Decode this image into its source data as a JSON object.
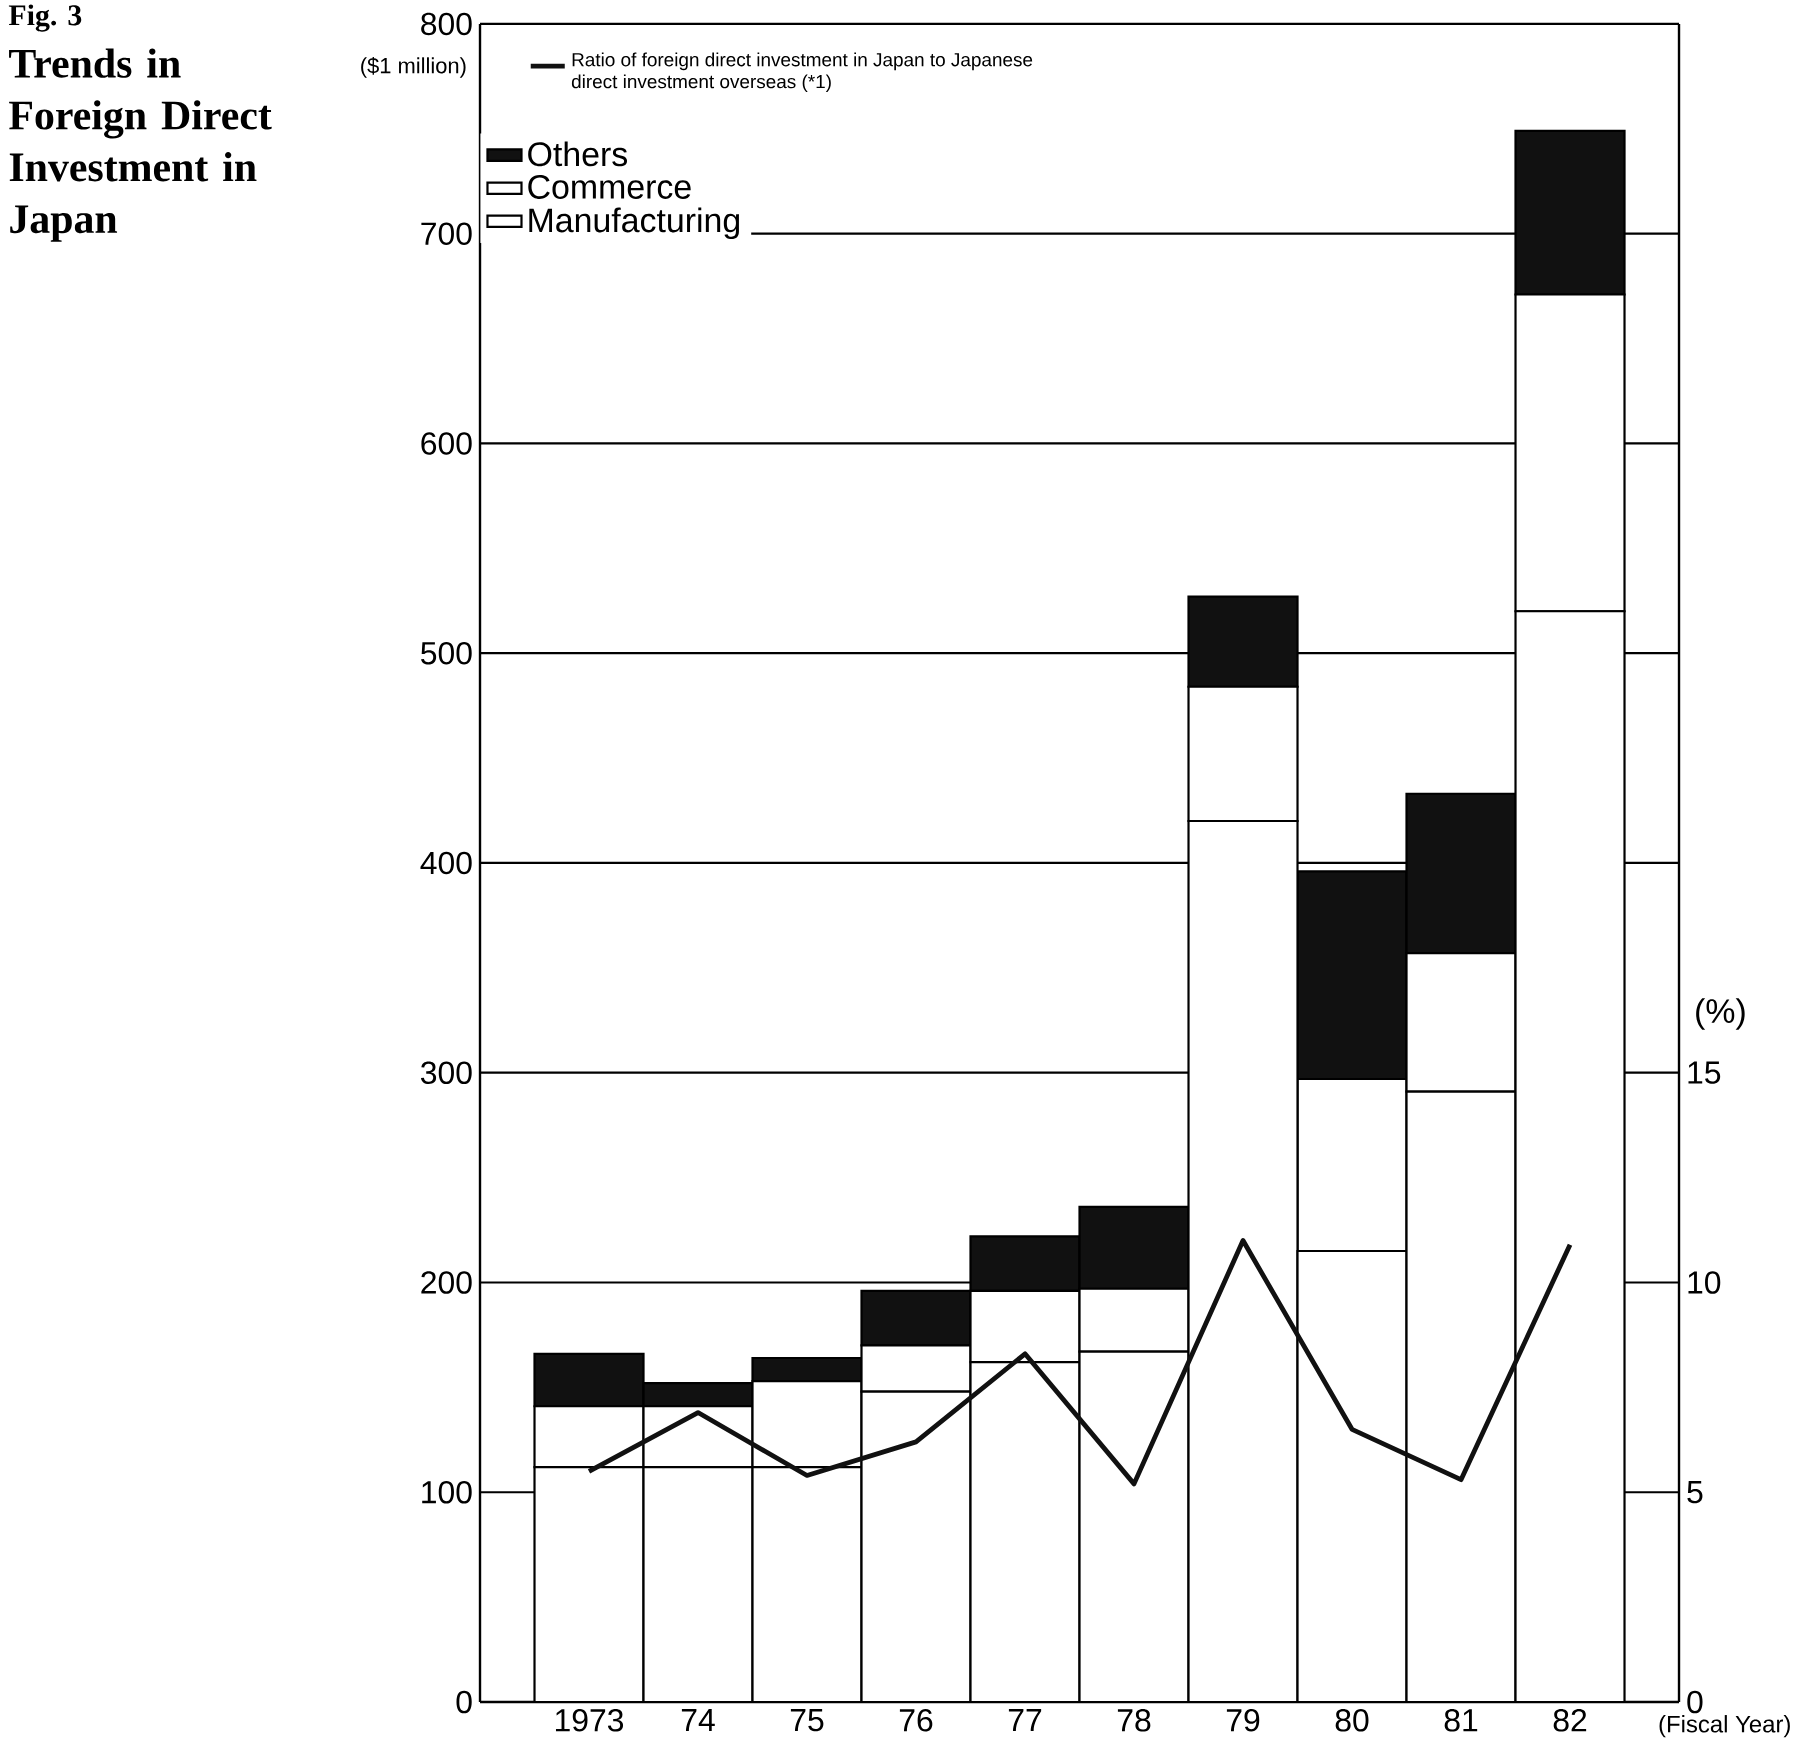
{
  "chart_data": {
    "type": "bar",
    "title": "Trends in Foreign Direct Investment in Japan",
    "annotations": [
      "Fig. 3"
    ],
    "ylabel": "($1 million)",
    "y2label": "(%)",
    "xlabel": "(Fiscal Year)",
    "categories": [
      "1973",
      "74",
      "75",
      "76",
      "77",
      "78",
      "79",
      "80",
      "81",
      "82"
    ],
    "stacked": true,
    "series": [
      {
        "name": "Manufacturing",
        "color": "#ffffff",
        "values": [
          112,
          112,
          112,
          148,
          162,
          167,
          420,
          215,
          291,
          520
        ]
      },
      {
        "name": "Commerce",
        "color": "#ffffff",
        "values": [
          29,
          29,
          41,
          22,
          34,
          30,
          64,
          82,
          66,
          151
        ]
      },
      {
        "name": "Others",
        "color": "#111111",
        "values": [
          25,
          11,
          11,
          26,
          26,
          39,
          43,
          99,
          76,
          78
        ]
      },
      {
        "name": "Ratio of foreign direct investment in Japan to Japanese direct investment overseas (*1)",
        "type": "line",
        "axis": "y2",
        "color": "#111111",
        "values": [
          5.5,
          6.9,
          5.4,
          6.2,
          8.3,
          5.2,
          11.0,
          6.5,
          5.3,
          10.9
        ]
      }
    ],
    "ylim": [
      0,
      800
    ],
    "yticks": [
      0,
      100,
      200,
      300,
      400,
      500,
      600,
      700,
      800
    ],
    "y2lim": [
      0,
      40
    ],
    "y2ticks": [
      0,
      5,
      10,
      15
    ],
    "grid": "y",
    "legend": "top left",
    "marker": "none",
    "line_style": "solid"
  }
}
